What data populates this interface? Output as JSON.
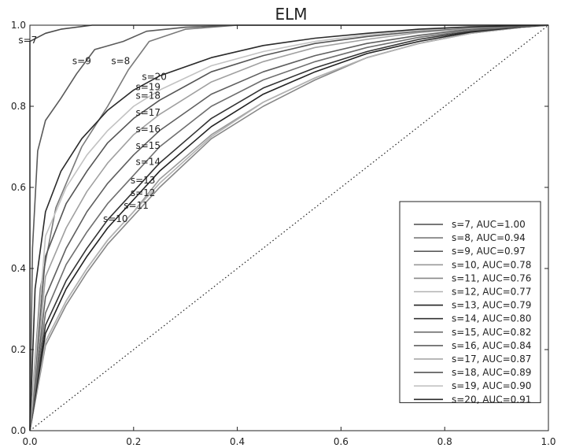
{
  "chart_data": {
    "type": "line",
    "title": "ELM",
    "xlabel": "",
    "ylabel": "",
    "xlim": [
      0,
      1
    ],
    "ylim": [
      0,
      1
    ],
    "x_ticks": [
      "0.0",
      "0.2",
      "0.4",
      "0.6",
      "0.8",
      "1.0"
    ],
    "y_ticks": [
      "0.0",
      "0.2",
      "0.4",
      "0.6",
      "0.8",
      "1.0"
    ],
    "grid": false,
    "legend_position": "lower-right",
    "diagonal": {
      "style": "dotted",
      "from": [
        0,
        0
      ],
      "to": [
        1,
        1
      ]
    },
    "series": [
      {
        "name": "s=7, AUC=1.00",
        "label": "s=7",
        "color": "#4a4a4a",
        "label_at": [
          -0.004,
          0.955
        ],
        "x": [
          0,
          0,
          0.015,
          0.03,
          0.06,
          0.12,
          0.2,
          0.3,
          1.0
        ],
        "y": [
          0,
          0.96,
          0.97,
          0.98,
          0.99,
          1.0,
          1.0,
          1.0,
          1.0
        ]
      },
      {
        "name": "s=8, AUC=0.94",
        "label": "s=8",
        "color": "#7a7a7a",
        "label_at": [
          0.175,
          0.904
        ],
        "x": [
          0,
          0.02,
          0.05,
          0.1,
          0.15,
          0.19,
          0.23,
          0.3,
          0.4,
          0.6,
          0.8,
          1.0
        ],
        "y": [
          0,
          0.35,
          0.55,
          0.7,
          0.8,
          0.89,
          0.96,
          0.99,
          1.0,
          1.0,
          1.0,
          1.0
        ]
      },
      {
        "name": "s=9, AUC=0.97",
        "label": "s=9",
        "color": "#5a5a5a",
        "label_at": [
          0.1,
          0.904
        ],
        "x": [
          0,
          0.005,
          0.015,
          0.03,
          0.06,
          0.09,
          0.125,
          0.18,
          0.225,
          0.3,
          0.4,
          1.0
        ],
        "y": [
          0,
          0.45,
          0.69,
          0.765,
          0.82,
          0.88,
          0.94,
          0.96,
          0.985,
          0.995,
          1.0,
          1.0
        ]
      },
      {
        "name": "s=10, AUC=0.78",
        "label": "s=10",
        "color": "#999999",
        "label_at": [
          0.165,
          0.515
        ],
        "x": [
          0,
          0.03,
          0.07,
          0.11,
          0.15,
          0.2,
          0.25,
          0.35,
          0.45,
          0.55,
          0.65,
          0.75,
          0.85,
          0.95,
          1.0
        ],
        "y": [
          0,
          0.22,
          0.32,
          0.4,
          0.47,
          0.54,
          0.62,
          0.73,
          0.81,
          0.87,
          0.92,
          0.955,
          0.98,
          0.995,
          1.0
        ]
      },
      {
        "name": "s=11, AUC=0.76",
        "label": "s=11",
        "color": "#888888",
        "label_at": [
          0.205,
          0.548
        ],
        "x": [
          0,
          0.03,
          0.07,
          0.11,
          0.15,
          0.2,
          0.25,
          0.35,
          0.45,
          0.55,
          0.65,
          0.75,
          0.85,
          0.95,
          1.0
        ],
        "y": [
          0,
          0.21,
          0.31,
          0.39,
          0.46,
          0.53,
          0.6,
          0.72,
          0.8,
          0.865,
          0.92,
          0.955,
          0.98,
          0.995,
          1.0
        ]
      },
      {
        "name": "s=12, AUC=0.77",
        "label": "s=12",
        "color": "#b2b2b2",
        "label_at": [
          0.218,
          0.579
        ],
        "x": [
          0,
          0.03,
          0.07,
          0.11,
          0.15,
          0.2,
          0.25,
          0.35,
          0.45,
          0.55,
          0.65,
          0.75,
          0.85,
          0.95,
          1.0
        ],
        "y": [
          0,
          0.22,
          0.32,
          0.4,
          0.47,
          0.54,
          0.61,
          0.725,
          0.81,
          0.87,
          0.92,
          0.955,
          0.98,
          0.995,
          1.0
        ]
      },
      {
        "name": "s=13, AUC=0.79",
        "label": "s=13",
        "color": "#222222",
        "label_at": [
          0.218,
          0.61
        ],
        "x": [
          0,
          0.03,
          0.07,
          0.11,
          0.15,
          0.2,
          0.25,
          0.35,
          0.45,
          0.55,
          0.65,
          0.75,
          0.85,
          0.95,
          1.0
        ],
        "y": [
          0,
          0.24,
          0.35,
          0.43,
          0.5,
          0.57,
          0.64,
          0.75,
          0.83,
          0.885,
          0.93,
          0.96,
          0.983,
          0.996,
          1.0
        ]
      },
      {
        "name": "s=14, AUC=0.80",
        "label": "s=14",
        "color": "#333333",
        "label_at": [
          0.228,
          0.655
        ],
        "x": [
          0,
          0.03,
          0.07,
          0.11,
          0.15,
          0.2,
          0.25,
          0.35,
          0.45,
          0.55,
          0.65,
          0.75,
          0.85,
          0.95,
          1.0
        ],
        "y": [
          0,
          0.26,
          0.37,
          0.45,
          0.52,
          0.59,
          0.66,
          0.77,
          0.845,
          0.895,
          0.935,
          0.965,
          0.985,
          0.996,
          1.0
        ]
      },
      {
        "name": "s=15, AUC=0.82",
        "label": "s=15",
        "color": "#6e6e6e",
        "label_at": [
          0.228,
          0.695
        ],
        "x": [
          0,
          0.03,
          0.07,
          0.11,
          0.15,
          0.2,
          0.25,
          0.35,
          0.45,
          0.55,
          0.65,
          0.75,
          0.85,
          0.95,
          1.0
        ],
        "y": [
          0,
          0.29,
          0.41,
          0.49,
          0.56,
          0.63,
          0.7,
          0.8,
          0.865,
          0.91,
          0.945,
          0.97,
          0.987,
          0.997,
          1.0
        ]
      },
      {
        "name": "s=16, AUC=0.84",
        "label": "s=16",
        "color": "#5f5f5f",
        "label_at": [
          0.228,
          0.736
        ],
        "x": [
          0,
          0.03,
          0.07,
          0.11,
          0.15,
          0.2,
          0.25,
          0.35,
          0.45,
          0.55,
          0.65,
          0.75,
          0.85,
          0.95,
          1.0
        ],
        "y": [
          0,
          0.33,
          0.45,
          0.54,
          0.61,
          0.68,
          0.74,
          0.83,
          0.885,
          0.925,
          0.955,
          0.975,
          0.99,
          0.997,
          1.0
        ]
      },
      {
        "name": "s=17, AUC=0.87",
        "label": "s=17",
        "color": "#a0a0a0",
        "label_at": [
          0.228,
          0.777
        ],
        "x": [
          0,
          0.03,
          0.07,
          0.11,
          0.15,
          0.2,
          0.25,
          0.35,
          0.45,
          0.55,
          0.65,
          0.75,
          0.85,
          0.95,
          1.0
        ],
        "y": [
          0,
          0.38,
          0.5,
          0.59,
          0.66,
          0.73,
          0.78,
          0.86,
          0.91,
          0.945,
          0.965,
          0.982,
          0.992,
          0.998,
          1.0
        ]
      },
      {
        "name": "s=18, AUC=0.89",
        "label": "s=18",
        "color": "#555555",
        "label_at": [
          0.228,
          0.818
        ],
        "x": [
          0,
          0.03,
          0.07,
          0.11,
          0.15,
          0.2,
          0.25,
          0.35,
          0.45,
          0.55,
          0.65,
          0.75,
          0.85,
          0.95,
          1.0
        ],
        "y": [
          0,
          0.43,
          0.56,
          0.64,
          0.71,
          0.77,
          0.815,
          0.885,
          0.925,
          0.955,
          0.972,
          0.985,
          0.994,
          0.998,
          1.0
        ]
      },
      {
        "name": "s=19, AUC=0.90",
        "label": "s=19",
        "color": "#c2c2c2",
        "label_at": [
          0.228,
          0.84
        ],
        "x": [
          0,
          0.03,
          0.07,
          0.11,
          0.15,
          0.2,
          0.25,
          0.35,
          0.45,
          0.55,
          0.65,
          0.75,
          0.85,
          0.95,
          1.0
        ],
        "y": [
          0,
          0.48,
          0.6,
          0.68,
          0.74,
          0.8,
          0.84,
          0.9,
          0.935,
          0.96,
          0.976,
          0.987,
          0.995,
          0.999,
          1.0
        ]
      },
      {
        "name": "s=20, AUC=0.91",
        "label": "s=20",
        "color": "#2a2a2a",
        "label_at": [
          0.24,
          0.865
        ],
        "x": [
          0,
          0.01,
          0.03,
          0.06,
          0.1,
          0.15,
          0.2,
          0.25,
          0.35,
          0.45,
          0.55,
          0.65,
          0.75,
          0.85,
          0.95,
          1.0
        ],
        "y": [
          0,
          0.35,
          0.54,
          0.64,
          0.72,
          0.79,
          0.84,
          0.875,
          0.92,
          0.95,
          0.968,
          0.98,
          0.99,
          0.996,
          0.999,
          1.0
        ]
      }
    ]
  }
}
